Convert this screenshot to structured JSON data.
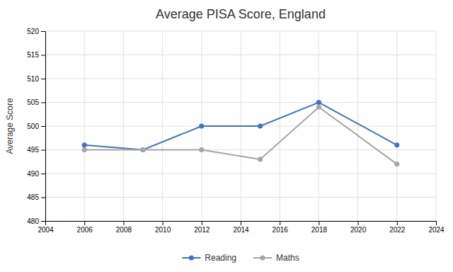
{
  "chart_data": {
    "type": "line",
    "title": "Average PISA Score, England",
    "ylabel": "Average Score",
    "x": [
      2006,
      2009,
      2012,
      2015,
      2018,
      2022
    ],
    "series": [
      {
        "name": "Reading",
        "color": "#4472C4",
        "marker": "circle",
        "values": [
          496,
          495,
          500,
          500,
          505,
          496
        ]
      },
      {
        "name": "Maths",
        "color": "#A5A5A5",
        "marker": "circle",
        "values": [
          495,
          495,
          495,
          493,
          504,
          492
        ]
      }
    ],
    "xlim": [
      2004,
      2024
    ],
    "ylim": [
      480,
      520
    ],
    "xticks": [
      2004,
      2006,
      2008,
      2010,
      2012,
      2014,
      2016,
      2018,
      2020,
      2022,
      2024
    ],
    "yticks": [
      480,
      485,
      490,
      495,
      500,
      505,
      510,
      515,
      520
    ],
    "grid": true,
    "legend": "bottom"
  }
}
